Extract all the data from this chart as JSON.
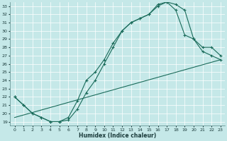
{
  "xlabel": "Humidex (Indice chaleur)",
  "bg_color": "#c5e8e8",
  "line_color": "#1a6b5a",
  "marker": "+",
  "markersize": 3,
  "linewidth": 0.8,
  "xlim": [
    -0.5,
    23.5
  ],
  "ylim": [
    18.5,
    33.5
  ],
  "xticks": [
    0,
    1,
    2,
    3,
    4,
    5,
    6,
    7,
    8,
    9,
    10,
    11,
    12,
    13,
    14,
    15,
    16,
    17,
    18,
    19,
    20,
    21,
    22,
    23
  ],
  "yticks": [
    19,
    20,
    21,
    22,
    23,
    24,
    25,
    26,
    27,
    28,
    29,
    30,
    31,
    32,
    33
  ],
  "line1_x": [
    0,
    1,
    2,
    3,
    4,
    5,
    6,
    7,
    8,
    9,
    10,
    11,
    12,
    13,
    14,
    15,
    16,
    17,
    18,
    19,
    20,
    21,
    22,
    23
  ],
  "line1_y": [
    22,
    21,
    20,
    19.5,
    19,
    19,
    19.2,
    20.5,
    22.5,
    24,
    26,
    28,
    30,
    31,
    31.5,
    32,
    33,
    33.5,
    33.2,
    32.5,
    29,
    27.5,
    27,
    26.5
  ],
  "line2_x": [
    0,
    1,
    2,
    3,
    4,
    5,
    6,
    7,
    8,
    9,
    10,
    11,
    12,
    13,
    14,
    15,
    16,
    17,
    18,
    19,
    20,
    21,
    22,
    23
  ],
  "line2_y": [
    22,
    21,
    20,
    19.5,
    19,
    19,
    19.5,
    21.5,
    24,
    25,
    26.5,
    28.5,
    30,
    31,
    31.5,
    32,
    33.2,
    33.5,
    32.5,
    29.5,
    29,
    28,
    28,
    27
  ],
  "line3_x": [
    0,
    23
  ],
  "line3_y": [
    19.5,
    26.5
  ]
}
